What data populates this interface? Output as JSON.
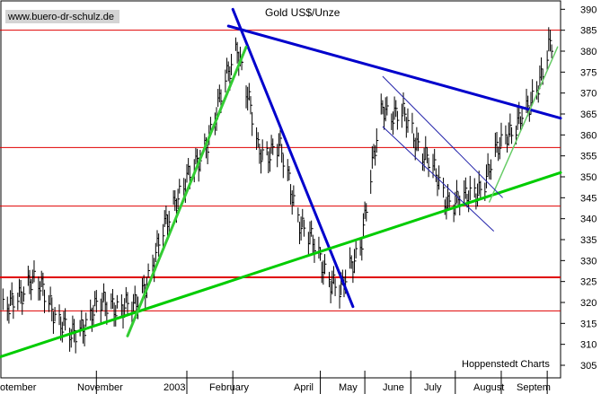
{
  "watermark": "www.buero-dr-schulz.de",
  "credit": "Hoppenstedt Charts",
  "chart_data": {
    "type": "ohlc",
    "title": "Gold US$/Unze",
    "ylim": [
      302,
      392
    ],
    "y_ticks": [
      305,
      310,
      315,
      320,
      325,
      330,
      335,
      340,
      345,
      350,
      355,
      360,
      365,
      370,
      375,
      380,
      385,
      390
    ],
    "x_ticks": [
      "September",
      "November",
      "2003",
      "February",
      "April",
      "May",
      "June",
      "July",
      "August",
      "September"
    ],
    "x_tick_labels_visible": [
      "otember",
      "November",
      "2003",
      "February",
      "April",
      "May",
      "June",
      "July",
      "August",
      "Septem"
    ],
    "horizontal_levels": [
      385,
      357,
      343,
      326,
      318
    ],
    "trendlines": [
      {
        "color": "#0000cc",
        "from": [
          "2003-01-29",
          386
        ],
        "to": [
          "2003-09-10",
          364
        ]
      },
      {
        "color": "#0000cc",
        "from": [
          "2003-02-01",
          390
        ],
        "to": [
          "2003-04-23",
          319
        ]
      },
      {
        "color": "#00cc00",
        "from": [
          "2002-08-28",
          307
        ],
        "to": [
          "2003-09-10",
          351
        ]
      },
      {
        "color": "#33cc33",
        "from": [
          "2002-11-22",
          312
        ],
        "to": [
          "2003-02-10",
          381
        ]
      },
      {
        "color": "#66cc66",
        "from": [
          "2003-07-24",
          344
        ],
        "to": [
          "2003-09-08",
          381
        ]
      }
    ],
    "channel": [
      {
        "from": [
          "2003-05-13",
          374
        ],
        "to": [
          "2003-08-02",
          345
        ]
      },
      {
        "from": [
          "2003-05-13",
          362
        ],
        "to": [
          "2003-07-27",
          337
        ]
      }
    ],
    "series": [
      {
        "x": [
          "2002-09-03",
          "2002-09-17",
          "2002-10-01",
          "2002-10-15",
          "2002-10-29",
          "2002-11-12",
          "2002-11-26",
          "2002-12-10",
          "2002-12-24",
          "2003-01-07",
          "2003-01-21",
          "2003-02-04",
          "2003-02-18",
          "2003-03-04",
          "2003-03-18",
          "2003-04-01",
          "2003-04-15",
          "2003-04-29",
          "2003-05-13",
          "2003-05-27",
          "2003-06-10",
          "2003-06-24",
          "2003-07-08",
          "2003-07-22",
          "2003-08-05",
          "2003-08-19",
          "2003-09-02"
        ],
        "values": [
          318,
          326,
          320,
          311,
          318,
          320,
          318,
          330,
          345,
          352,
          365,
          382,
          356,
          357,
          340,
          330,
          322,
          336,
          367,
          364,
          356,
          345,
          344,
          350,
          361,
          365,
          381
        ]
      }
    ]
  }
}
